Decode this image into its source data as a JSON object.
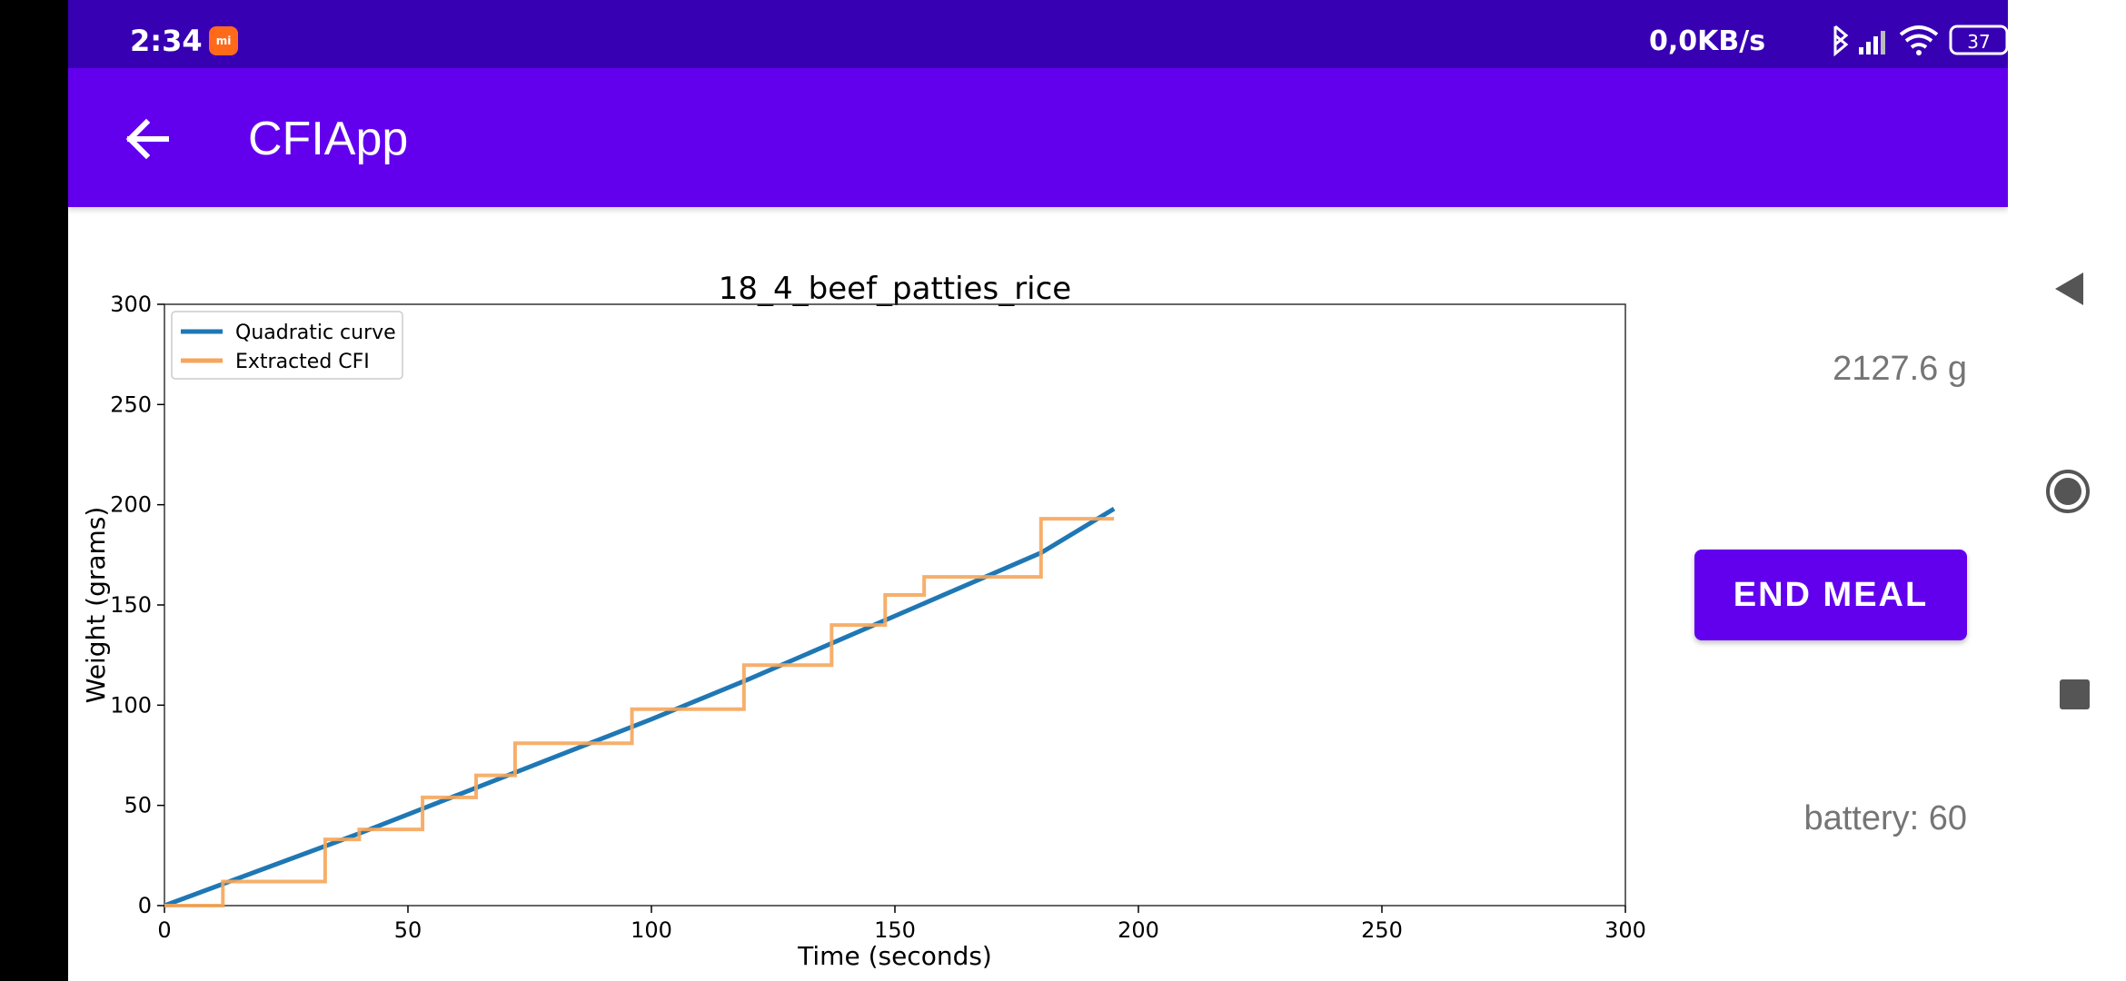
{
  "status_bar": {
    "time": "2:34",
    "app_badge": "mi",
    "net_speed": "0,0KB/s",
    "battery_level": "37",
    "icons": [
      "bluetooth-icon",
      "signal-icon",
      "wifi-icon",
      "battery-icon"
    ]
  },
  "app_bar": {
    "title": "CFIApp",
    "back_icon": "arrow-left-icon",
    "background": "#6200ee"
  },
  "chart_data": {
    "type": "line",
    "title": "18_4_beef_patties_rice",
    "xlabel": "Time (seconds)",
    "ylabel": "Weight (grams)",
    "xlim": [
      0,
      300
    ],
    "ylim": [
      0,
      300
    ],
    "xticks": [
      0,
      50,
      100,
      150,
      200,
      250,
      300
    ],
    "yticks": [
      0,
      50,
      100,
      150,
      200,
      250,
      300
    ],
    "legend_position": "top-left",
    "grid": false,
    "series": [
      {
        "name": "Quadratic curve",
        "color": "#1f77b4",
        "x": [
          0,
          20,
          40,
          60,
          80,
          100,
          120,
          140,
          160,
          180,
          195
        ],
        "y": [
          0,
          18,
          36,
          55,
          74,
          93,
          113,
          134,
          155,
          176,
          198
        ]
      },
      {
        "name": "Extracted CFI",
        "color": "#f5a65b",
        "step": true,
        "x": [
          0,
          12,
          33,
          40,
          53,
          64,
          72,
          96,
          119,
          137,
          148,
          156,
          180,
          195
        ],
        "y": [
          0,
          12,
          33,
          38,
          54,
          65,
          81,
          98,
          120,
          140,
          155,
          164,
          193,
          193
        ]
      }
    ]
  },
  "main": {
    "weight": "2127.6 g",
    "end_meal_label": "END MEAL",
    "battery": "battery: 60"
  },
  "nav_bar": {
    "icons": [
      "nav-back-icon",
      "nav-home-icon",
      "nav-recent-icon"
    ]
  }
}
